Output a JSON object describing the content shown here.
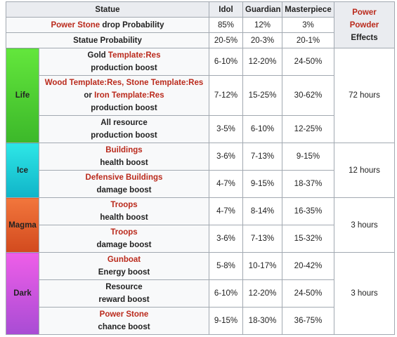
{
  "header": {
    "statue": "Statue",
    "idol": "Idol",
    "guardian": "Guardian",
    "masterpiece": "Masterpiece",
    "effects_link": "Power Powder",
    "effects_text": "Effects"
  },
  "drop_row": {
    "label_link": "Power Stone",
    "label_text": " drop Probability",
    "idol": "85%",
    "guardian": "12%",
    "masterpiece": "3%"
  },
  "prob_row": {
    "label": "Statue Probability",
    "idol": "20-5%",
    "guardian": "20-3%",
    "masterpiece": "20-1%"
  },
  "groups": {
    "life": {
      "name": "Life",
      "effect": "72 hours",
      "rows": [
        {
          "pre": "Gold ",
          "link": "Template:Res",
          "line2": "production boost",
          "idol": "6-10%",
          "guardian": "12-20%",
          "masterpiece": "24-50%"
        },
        {
          "link_a": "Wood Template:Res, Stone Template:Res",
          "mid": "or ",
          "link_b": "Iron Template:Res",
          "line2": "production boost",
          "idol": "7-12%",
          "guardian": "15-25%",
          "masterpiece": "30-62%"
        },
        {
          "line1": "All resource",
          "line2": "production boost",
          "idol": "3-5%",
          "guardian": "6-10%",
          "masterpiece": "12-25%"
        }
      ]
    },
    "ice": {
      "name": "Ice",
      "effect": "12 hours",
      "rows": [
        {
          "link": "Buildings",
          "line2": "health boost",
          "idol": "3-6%",
          "guardian": "7-13%",
          "masterpiece": "9-15%"
        },
        {
          "link": "Defensive Buildings",
          "line2": "damage boost",
          "idol": "4-7%",
          "guardian": "9-15%",
          "masterpiece": "18-37%"
        }
      ]
    },
    "magma": {
      "name": "Magma",
      "effect": "3 hours",
      "rows": [
        {
          "link": "Troops",
          "line2": "health boost",
          "idol": "4-7%",
          "guardian": "8-14%",
          "masterpiece": "16-35%"
        },
        {
          "link": "Troops",
          "line2": "damage boost",
          "idol": "3-6%",
          "guardian": "7-13%",
          "masterpiece": "15-32%"
        }
      ]
    },
    "dark": {
      "name": "Dark",
      "effect": "3 hours",
      "rows": [
        {
          "link": "Gunboat",
          "line2": "Energy boost",
          "idol": "5-8%",
          "guardian": "10-17%",
          "masterpiece": "20-42%"
        },
        {
          "line1": "Resource",
          "line2": "reward boost",
          "idol": "6-10%",
          "guardian": "12-20%",
          "masterpiece": "24-50%"
        },
        {
          "link": "Power Stone",
          "line2": "chance boost",
          "idol": "9-15%",
          "guardian": "18-30%",
          "masterpiece": "36-75%"
        }
      ]
    }
  },
  "colors": {
    "link": "#ba2a1c",
    "border": "#a2a9b1",
    "header_bg": "#eaecf0",
    "life": "#4fcf34",
    "ice": "#1ccfd8",
    "magma": "#e35e2c",
    "dark": "#c856dc"
  }
}
